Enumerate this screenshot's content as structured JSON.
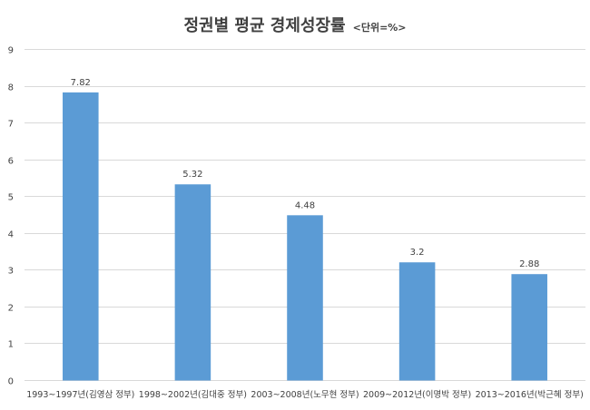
{
  "chart_data": {
    "type": "bar",
    "title": "정권별 평균 경제성장률",
    "subtitle": "<단위=%>",
    "categories": [
      "1993~1997년(김영삼 정부)",
      "1998~2002년(김대중 정부)",
      "2003~2008년(노무현 정부)",
      "2009~2012년(이명박 정부)",
      "2013~2016년(박근혜 정부)"
    ],
    "values": [
      7.82,
      5.32,
      4.48,
      3.2,
      2.88
    ],
    "value_labels": [
      "7.82",
      "5.32",
      "4.48",
      "3.2",
      "2.88"
    ],
    "ylim": [
      0,
      9
    ],
    "yticks": [
      0,
      1,
      2,
      3,
      4,
      5,
      6,
      7,
      8,
      9
    ],
    "grid": true,
    "legend": "none",
    "bar_color": "#5b9bd5",
    "grid_color": "#d9d9d9",
    "text_color": "#404040"
  }
}
